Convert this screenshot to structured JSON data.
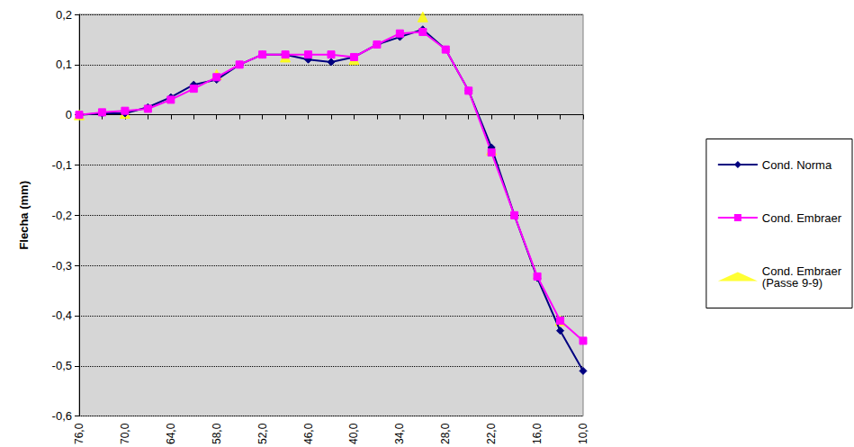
{
  "chart_data": {
    "type": "line",
    "y_label": "Flecha (mm)",
    "x": [
      76,
      73,
      70,
      67,
      64,
      61,
      58,
      55,
      52,
      49,
      46,
      43,
      40,
      37,
      34,
      31,
      28,
      25,
      22,
      19,
      16,
      13,
      10
    ],
    "xlim": [
      76,
      10
    ],
    "xticks": [
      {
        "value": 76,
        "label": "76,0"
      },
      {
        "value": 70,
        "label": "70,0"
      },
      {
        "value": 64,
        "label": "64,0"
      },
      {
        "value": 58,
        "label": "58,0"
      },
      {
        "value": 52,
        "label": "52,0"
      },
      {
        "value": 46,
        "label": "46,0"
      },
      {
        "value": 40,
        "label": "40,0"
      },
      {
        "value": 34,
        "label": "34,0"
      },
      {
        "value": 28,
        "label": "28,0"
      },
      {
        "value": 22,
        "label": "22,0"
      },
      {
        "value": 16,
        "label": "16,0"
      },
      {
        "value": 10,
        "label": "10,0"
      }
    ],
    "ylim": [
      -0.6,
      0.2
    ],
    "yticks": [
      {
        "value": -0.6,
        "label": "-0,6"
      },
      {
        "value": -0.5,
        "label": "-0,5"
      },
      {
        "value": -0.4,
        "label": "-0,4"
      },
      {
        "value": -0.3,
        "label": "-0,3"
      },
      {
        "value": -0.2,
        "label": "-0,2"
      },
      {
        "value": -0.1,
        "label": "-0,1"
      },
      0,
      {
        "value": 0.1,
        "label": "0,1"
      },
      {
        "value": 0.2,
        "label": "0,2"
      }
    ],
    "grid": true,
    "legend": "right",
    "series": [
      {
        "name": "Cond. Norma",
        "color": "#000080",
        "marker": "diamond",
        "type": "line",
        "values": [
          0,
          0.003,
          0.003,
          0.015,
          0.035,
          0.06,
          0.07,
          0.1,
          0.12,
          0.12,
          0.11,
          0.105,
          0.115,
          0.14,
          0.155,
          0.17,
          0.13,
          0.048,
          -0.065,
          -0.2,
          -0.325,
          -0.43,
          -0.51
        ]
      },
      {
        "name": "Cond. Embraer",
        "color": "#FF00FF",
        "marker": "square",
        "type": "line",
        "values": [
          0,
          0.005,
          0.008,
          0.012,
          0.03,
          0.052,
          0.075,
          0.1,
          0.12,
          0.12,
          0.12,
          0.12,
          0.115,
          0.14,
          0.162,
          0.165,
          0.13,
          0.048,
          -0.075,
          -0.2,
          -0.322,
          -0.41,
          -0.45
        ]
      },
      {
        "name": "Cond. Embraer (Passe 9-9)",
        "color": "#FFFF00",
        "marker": "triangle",
        "type": "scatter",
        "values": [
          0,
          null,
          0.003,
          null,
          null,
          null,
          0.08,
          null,
          null,
          0.115,
          null,
          null,
          0.11,
          null,
          null,
          0.195,
          null,
          null,
          -0.07,
          null,
          null,
          -0.41,
          null
        ]
      }
    ]
  }
}
